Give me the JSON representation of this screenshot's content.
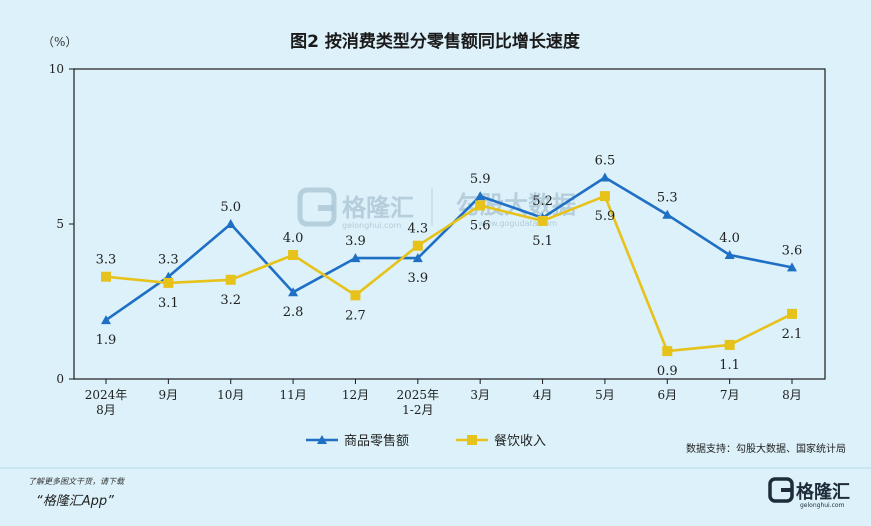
{
  "chart_data": {
    "type": "line",
    "title": "图2  按消费类型分零售额同比增长速度",
    "unit_label": "（%）",
    "categories": [
      "2024年\n8月",
      "9月",
      "10月",
      "11月",
      "12月",
      "2025年\n1-2月",
      "3月",
      "4月",
      "5月",
      "6月",
      "7月",
      "8月"
    ],
    "ylim": [
      0,
      10
    ],
    "yticks": [
      "0",
      "5",
      "10"
    ],
    "grid": false,
    "legend_position": "bottom",
    "series": [
      {
        "name": "商品零售额",
        "color": "#1f6fc5",
        "marker": "triangle",
        "values": [
          1.9,
          3.3,
          5.0,
          2.8,
          3.9,
          3.9,
          5.9,
          5.2,
          6.5,
          5.3,
          4.0,
          3.6
        ],
        "labels": [
          "1.9",
          "3.3",
          "5.0",
          "2.8",
          "3.9",
          "3.9",
          "5.9",
          "5.2",
          "6.5",
          "5.3",
          "4.0",
          "3.6"
        ],
        "label_pos": [
          "below",
          "above",
          "above",
          "below",
          "above",
          "below",
          "above",
          "above",
          "above",
          "above",
          "above",
          "above"
        ]
      },
      {
        "name": "餐饮收入",
        "color": "#e6c21a",
        "marker": "square",
        "values": [
          3.3,
          3.1,
          3.2,
          4.0,
          2.7,
          4.3,
          5.6,
          5.1,
          5.9,
          0.9,
          1.1,
          2.1
        ],
        "labels": [
          "3.3",
          "3.1",
          "3.2",
          "4.0",
          "2.7",
          "4.3",
          "5.6",
          "5.1",
          "5.9",
          "0.9",
          "1.1",
          "2.1"
        ],
        "label_pos": [
          "above",
          "below",
          "below",
          "above",
          "below",
          "above",
          "below",
          "below",
          "below",
          "below",
          "below",
          "below"
        ]
      }
    ]
  },
  "source_text": "数据支持：勾股大数据、国家统计局",
  "watermark": {
    "brand": "格隆汇",
    "brand_sub": "gelonghui.com",
    "data": "勾股大数据",
    "data_sub": "www.gogudata.com"
  },
  "footer": {
    "note": "了解更多图文干货，请下载",
    "app": "“格隆汇App”",
    "logo_text": "格隆汇",
    "logo_sub": "gelonghui.com"
  },
  "colors": {
    "background": "#dcf1f9",
    "plot_border": "#1a1a1a"
  },
  "icons": [
    "gelonghui-logo-icon"
  ]
}
